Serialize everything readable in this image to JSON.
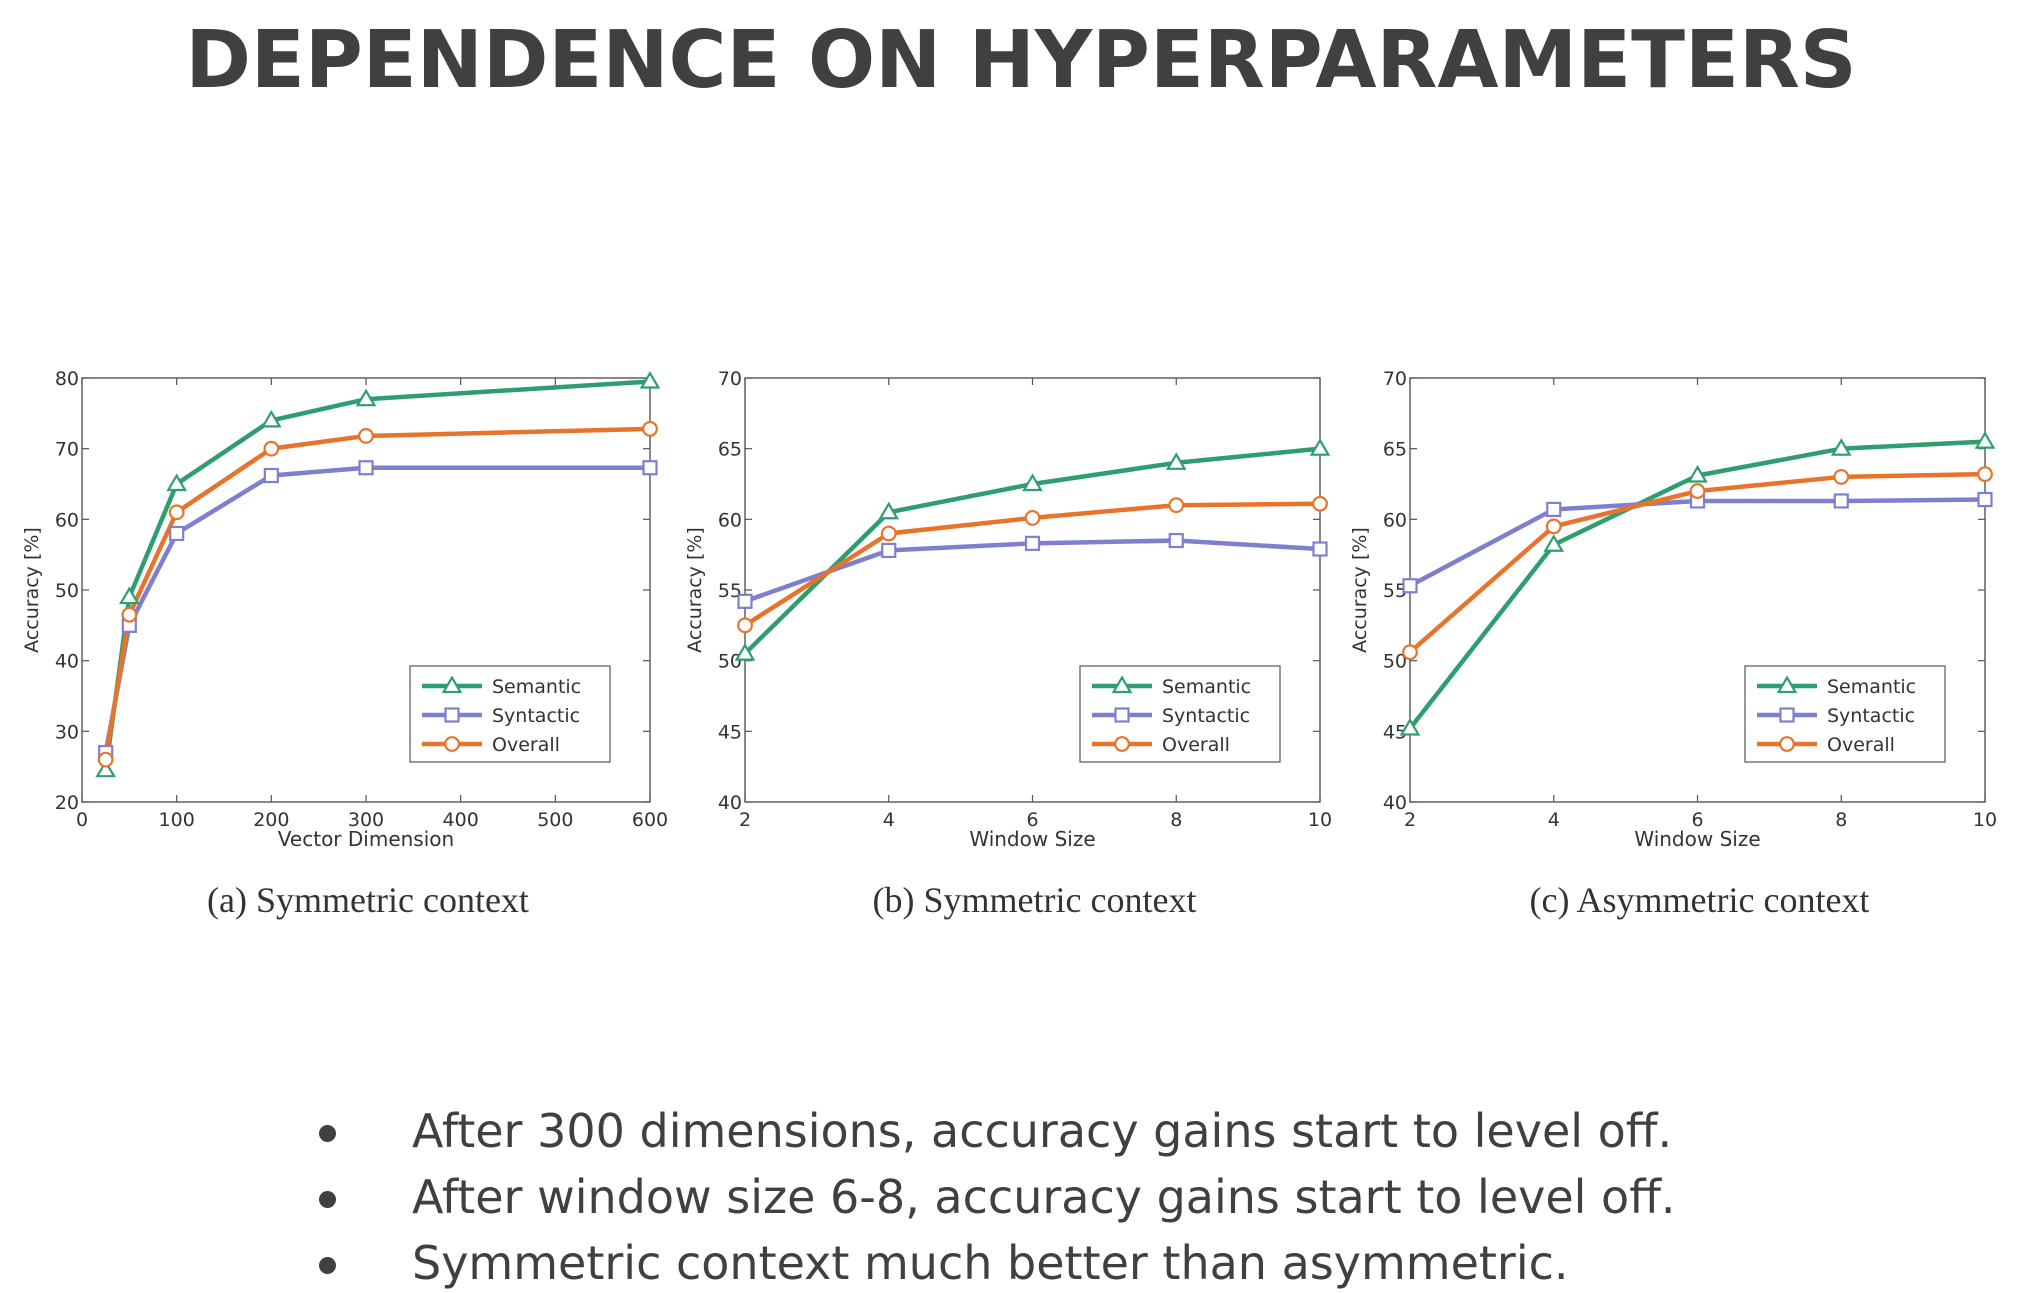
{
  "title": "DEPENDENCE ON HYPERPARAMETERS",
  "colors": {
    "semantic": "#2e9e6e",
    "syntactic": "#7f7fd0",
    "overall": "#e8732a",
    "text": "#404040",
    "axis": "#333333"
  },
  "chart_data": [
    {
      "type": "line",
      "caption": "(a) Symmetric context",
      "xlabel": "Vector Dimension",
      "ylabel": "Accuracy [%]",
      "xlim": [
        0,
        600
      ],
      "ylim": [
        20,
        80
      ],
      "xticks": [
        0,
        100,
        200,
        300,
        400,
        500,
        600
      ],
      "yticks": [
        20,
        30,
        40,
        50,
        60,
        70,
        80
      ],
      "x": [
        25,
        50,
        100,
        200,
        300,
        600
      ],
      "legend_position": "bottom-right",
      "grid": false,
      "series": [
        {
          "name": "Semantic",
          "marker": "triangle",
          "values": [
            24.5,
            49,
            65,
            74,
            77,
            79.5
          ]
        },
        {
          "name": "Syntactic",
          "marker": "square",
          "values": [
            27,
            45,
            58,
            66.2,
            67.3,
            67.3
          ]
        },
        {
          "name": "Overall",
          "marker": "circle",
          "values": [
            26,
            46.5,
            61,
            70,
            71.8,
            72.8
          ]
        }
      ]
    },
    {
      "type": "line",
      "caption": "(b) Symmetric context",
      "xlabel": "Window Size",
      "ylabel": "Accuracy [%]",
      "xlim": [
        2,
        10
      ],
      "ylim": [
        40,
        70
      ],
      "xticks": [
        2,
        4,
        6,
        8,
        10
      ],
      "yticks": [
        40,
        45,
        50,
        55,
        60,
        65,
        70
      ],
      "x": [
        2,
        4,
        6,
        8,
        10
      ],
      "legend_position": "bottom-right",
      "grid": false,
      "series": [
        {
          "name": "Semantic",
          "marker": "triangle",
          "values": [
            50.5,
            60.5,
            62.5,
            64,
            65
          ]
        },
        {
          "name": "Syntactic",
          "marker": "square",
          "values": [
            54.2,
            57.8,
            58.3,
            58.5,
            57.9
          ]
        },
        {
          "name": "Overall",
          "marker": "circle",
          "values": [
            52.5,
            59,
            60.1,
            61,
            61.1
          ]
        }
      ]
    },
    {
      "type": "line",
      "caption": "(c) Asymmetric context",
      "xlabel": "Window Size",
      "ylabel": "Accuracy [%]",
      "xlim": [
        2,
        10
      ],
      "ylim": [
        40,
        70
      ],
      "xticks": [
        2,
        4,
        6,
        8,
        10
      ],
      "yticks": [
        40,
        45,
        50,
        55,
        60,
        65,
        70
      ],
      "x": [
        2,
        4,
        6,
        8,
        10
      ],
      "legend_position": "bottom-right",
      "grid": false,
      "series": [
        {
          "name": "Semantic",
          "marker": "triangle",
          "values": [
            45.2,
            58.2,
            63.1,
            65,
            65.5
          ]
        },
        {
          "name": "Syntactic",
          "marker": "square",
          "values": [
            55.3,
            60.7,
            61.3,
            61.3,
            61.4
          ]
        },
        {
          "name": "Overall",
          "marker": "circle",
          "values": [
            50.6,
            59.5,
            62,
            63,
            63.2
          ]
        }
      ]
    }
  ],
  "bullets": [
    "After 300 dimensions, accuracy gains start to level off.",
    "After window size 6-8, accuracy gains start to level off.",
    "Symmetric context much better than asymmetric."
  ]
}
